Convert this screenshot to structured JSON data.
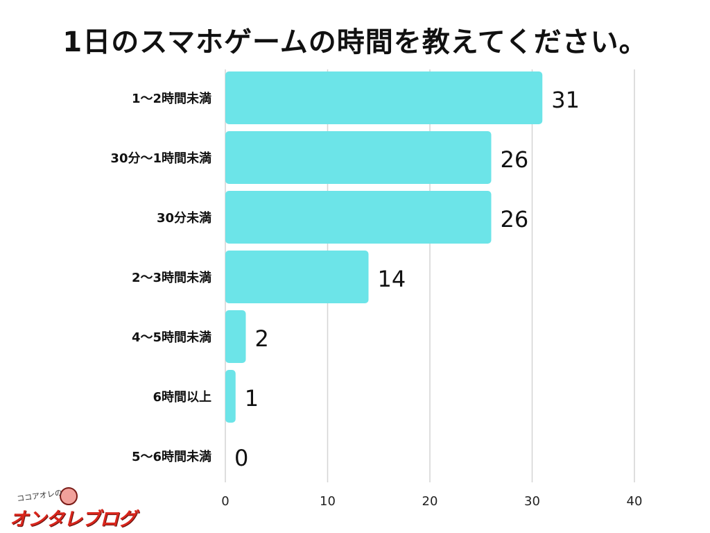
{
  "chart_data": {
    "type": "bar",
    "orientation": "horizontal",
    "title": "1日のスマホゲームの時間を教えてください。",
    "categories": [
      "1〜2時間未満",
      "30分〜1時間未満",
      "30分未満",
      "2〜3時間未満",
      "4〜5時間未満",
      "6時間以上",
      "5〜6時間未満"
    ],
    "values": [
      31,
      26,
      26,
      14,
      2,
      1,
      0
    ],
    "xlim": [
      0,
      40
    ],
    "xticks": [
      0,
      10,
      20,
      30,
      40
    ],
    "grid": true,
    "bar_color": "#6ce4e8",
    "grid_color": "#d4d4d4",
    "data_labels": true
  },
  "logo": {
    "small_text": "ココアオレの",
    "main_text": "オンタレブログ",
    "brand_color": "#d9261c"
  }
}
